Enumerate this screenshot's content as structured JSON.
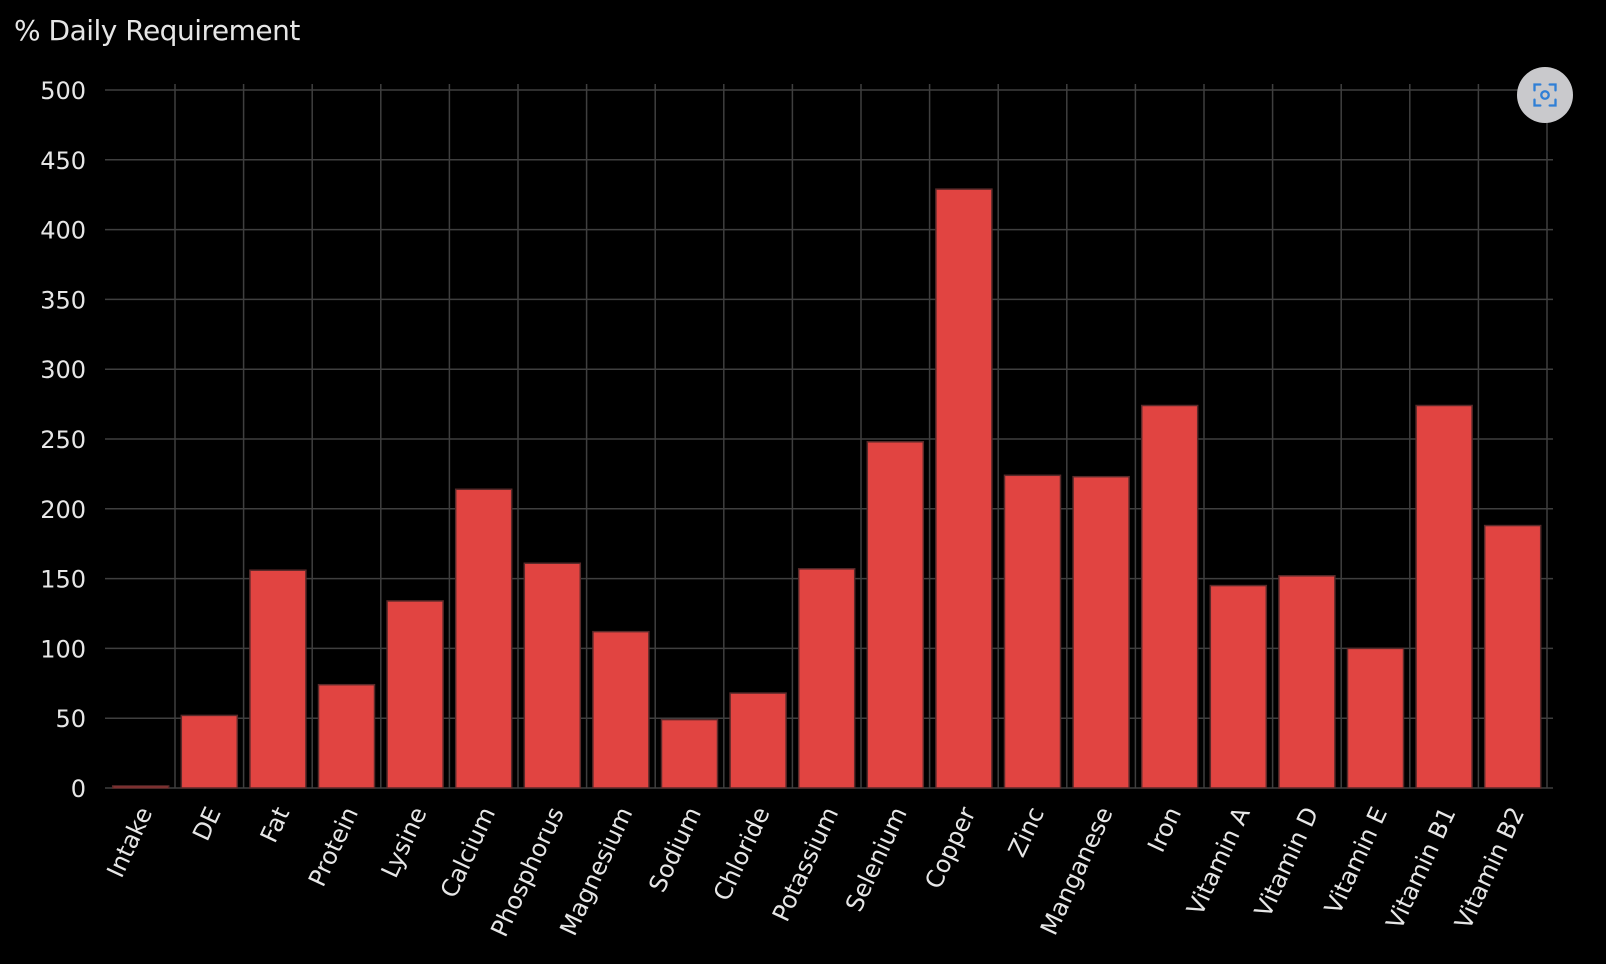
{
  "title": "% Daily Requirement",
  "focus_button": {
    "icon": "focus-scan-icon"
  },
  "colors": {
    "background": "#000000",
    "bar_fill": "#e14441",
    "bar_stroke": "#5a2a2a",
    "grid": "#3f3f3f",
    "text": "#e6e6e6",
    "button_bg": "#c9c9cc",
    "button_icon": "#2f7fd6"
  },
  "chart_data": {
    "type": "bar",
    "title": "% Daily Requirement",
    "xlabel": "",
    "ylabel": "",
    "ylim": [
      0,
      500
    ],
    "yticks": [
      0,
      50,
      100,
      150,
      200,
      250,
      300,
      350,
      400,
      450,
      500
    ],
    "grid": true,
    "categories": [
      "Intake",
      "DE",
      "Fat",
      "Protein",
      "Lysine",
      "Calcium",
      "Phosphorus",
      "Magnesium",
      "Sodium",
      "Chloride",
      "Potassium",
      "Selenium",
      "Copper",
      "Zinc",
      "Manganese",
      "Iron",
      "Vitamin A",
      "Vitamin D",
      "Vitamin E",
      "Vitamin B1",
      "Vitamin B2"
    ],
    "values": [
      1,
      52,
      156,
      74,
      134,
      214,
      161,
      112,
      49,
      68,
      157,
      248,
      429,
      224,
      223,
      274,
      145,
      152,
      100,
      274,
      188
    ]
  }
}
